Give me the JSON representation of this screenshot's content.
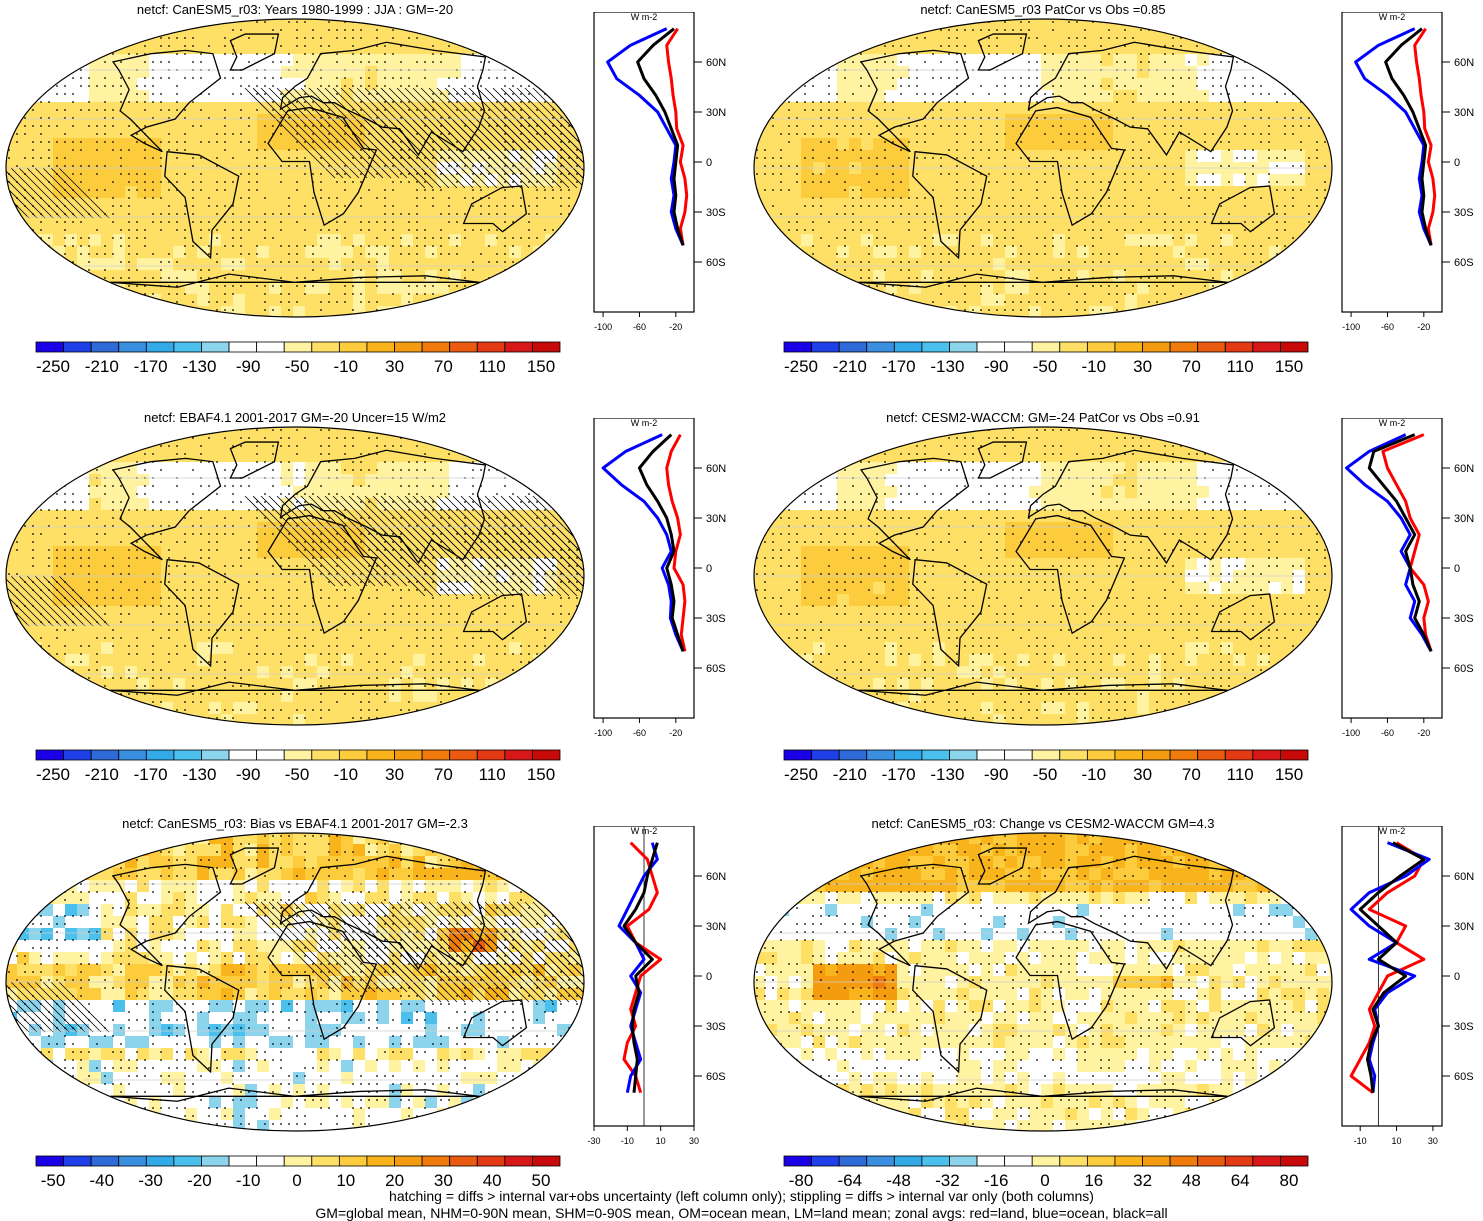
{
  "chart_data": [
    {
      "type": "heatmap",
      "variable": "netcf",
      "title": "netcf: CanESM5_r03: Years 1980-1999 : JJA : GM=-20",
      "colorbar_ticks": [
        "-250",
        "-210",
        "-170",
        "-130",
        "-90",
        "-50",
        "-10",
        "30",
        "70",
        "110",
        "150"
      ],
      "colorbar_range": [
        -270,
        170
      ],
      "hatching": true,
      "stippling": true,
      "profile": {
        "unit": "W m-2",
        "xticks": [
          "-100",
          "-60",
          "-20"
        ],
        "xlim": [
          -110,
          0
        ],
        "yticks": [
          "60N",
          "30N",
          "0",
          "30S",
          "60S"
        ],
        "lat_range": [
          -90,
          90
        ],
        "series": [
          {
            "name": "land",
            "color": "#ff0000",
            "lat": [
              80,
              70,
              60,
              50,
              40,
              30,
              20,
              10,
              0,
              -10,
              -20,
              -30,
              -40,
              -50
            ],
            "values": [
              -18,
              -30,
              -28,
              -25,
              -23,
              -20,
              -19,
              -12,
              -15,
              -10,
              -8,
              -10,
              -15,
              -12
            ]
          },
          {
            "name": "ocean",
            "color": "#0000ff",
            "lat": [
              80,
              70,
              60,
              50,
              40,
              30,
              20,
              10,
              0,
              -10,
              -20,
              -30,
              -40,
              -50
            ],
            "values": [
              -30,
              -70,
              -95,
              -85,
              -60,
              -40,
              -30,
              -20,
              -22,
              -25,
              -22,
              -25,
              -20,
              -12
            ]
          },
          {
            "name": "all",
            "color": "#000000",
            "lat": [
              80,
              70,
              60,
              50,
              40,
              30,
              20,
              10,
              0,
              -10,
              -20,
              -30,
              -40,
              -50
            ],
            "values": [
              -22,
              -45,
              -62,
              -55,
              -42,
              -32,
              -25,
              -18,
              -20,
              -22,
              -20,
              -22,
              -18,
              -12
            ]
          }
        ]
      }
    },
    {
      "type": "heatmap",
      "variable": "netcf",
      "title": "netcf: CanESM5_r03 PatCor vs Obs =0.85",
      "colorbar_ticks": [
        "-250",
        "-210",
        "-170",
        "-130",
        "-90",
        "-50",
        "-10",
        "30",
        "70",
        "110",
        "150"
      ],
      "colorbar_range": [
        -270,
        170
      ],
      "hatching": false,
      "stippling": true,
      "profile": {
        "unit": "W m-2",
        "xticks": [
          "-100",
          "-60",
          "-20"
        ],
        "xlim": [
          -110,
          0
        ],
        "yticks": [
          "60N",
          "30N",
          "0",
          "30S",
          "60S"
        ],
        "lat_range": [
          -90,
          90
        ],
        "series": [
          {
            "name": "land",
            "color": "#ff0000",
            "lat": [
              80,
              70,
              60,
              50,
              40,
              30,
              20,
              10,
              0,
              -10,
              -20,
              -30,
              -40,
              -50
            ],
            "values": [
              -18,
              -30,
              -28,
              -25,
              -23,
              -20,
              -19,
              -12,
              -15,
              -10,
              -8,
              -10,
              -15,
              -12
            ]
          },
          {
            "name": "ocean",
            "color": "#0000ff",
            "lat": [
              80,
              70,
              60,
              50,
              40,
              30,
              20,
              10,
              0,
              -10,
              -20,
              -30,
              -40,
              -50
            ],
            "values": [
              -30,
              -70,
              -95,
              -85,
              -60,
              -40,
              -30,
              -20,
              -22,
              -25,
              -22,
              -25,
              -20,
              -12
            ]
          },
          {
            "name": "all",
            "color": "#000000",
            "lat": [
              80,
              70,
              60,
              50,
              40,
              30,
              20,
              10,
              0,
              -10,
              -20,
              -30,
              -40,
              -50
            ],
            "values": [
              -22,
              -45,
              -62,
              -55,
              -42,
              -32,
              -25,
              -18,
              -20,
              -22,
              -20,
              -22,
              -18,
              -12
            ]
          }
        ]
      }
    },
    {
      "type": "heatmap",
      "variable": "netcf",
      "title": "netcf: EBAF4.1 2001-2017 GM=-20 Uncer=15 W/m2",
      "colorbar_ticks": [
        "-250",
        "-210",
        "-170",
        "-130",
        "-90",
        "-50",
        "-10",
        "30",
        "70",
        "110",
        "150"
      ],
      "colorbar_range": [
        -270,
        170
      ],
      "hatching": true,
      "stippling": true,
      "profile": {
        "unit": "W m-2",
        "xticks": [
          "-100",
          "-60",
          "-20"
        ],
        "xlim": [
          -110,
          0
        ],
        "yticks": [
          "60N",
          "30N",
          "0",
          "30S",
          "60S"
        ],
        "lat_range": [
          -90,
          90
        ],
        "series": [
          {
            "name": "land",
            "color": "#ff0000",
            "lat": [
              80,
              70,
              60,
              50,
              40,
              30,
              20,
              10,
              0,
              -10,
              -20,
              -30,
              -40,
              -50
            ],
            "values": [
              -15,
              -25,
              -30,
              -28,
              -24,
              -18,
              -15,
              -20,
              -22,
              -12,
              -10,
              -12,
              -14,
              -10
            ]
          },
          {
            "name": "ocean",
            "color": "#0000ff",
            "lat": [
              80,
              70,
              60,
              50,
              40,
              30,
              20,
              10,
              0,
              -10,
              -20,
              -30,
              -40,
              -50
            ],
            "values": [
              -35,
              -75,
              -100,
              -80,
              -55,
              -40,
              -30,
              -25,
              -35,
              -28,
              -25,
              -26,
              -20,
              -12
            ]
          },
          {
            "name": "all",
            "color": "#000000",
            "lat": [
              80,
              70,
              60,
              50,
              40,
              30,
              20,
              10,
              0,
              -10,
              -20,
              -30,
              -40,
              -50
            ],
            "values": [
              -25,
              -45,
              -60,
              -52,
              -40,
              -30,
              -25,
              -22,
              -30,
              -25,
              -22,
              -24,
              -18,
              -12
            ]
          }
        ]
      }
    },
    {
      "type": "heatmap",
      "variable": "netcf",
      "title": "netcf: CESM2-WACCM: GM=-24 PatCor vs Obs =0.91",
      "colorbar_ticks": [
        "-250",
        "-210",
        "-170",
        "-130",
        "-90",
        "-50",
        "-10",
        "30",
        "70",
        "110",
        "150"
      ],
      "colorbar_range": [
        -270,
        170
      ],
      "hatching": false,
      "stippling": true,
      "profile": {
        "unit": "W m-2",
        "xticks": [
          "-100",
          "-60",
          "-20"
        ],
        "xlim": [
          -110,
          0
        ],
        "yticks": [
          "60N",
          "30N",
          "0",
          "30S",
          "60S"
        ],
        "lat_range": [
          -90,
          90
        ],
        "series": [
          {
            "name": "land",
            "color": "#ff0000",
            "lat": [
              80,
              70,
              60,
              50,
              40,
              30,
              20,
              10,
              0,
              -10,
              -20,
              -30,
              -40,
              -50
            ],
            "values": [
              -20,
              -65,
              -60,
              -50,
              -40,
              -35,
              -25,
              -30,
              -35,
              -20,
              -15,
              -20,
              -18,
              -12
            ]
          },
          {
            "name": "ocean",
            "color": "#0000ff",
            "lat": [
              80,
              70,
              60,
              50,
              40,
              30,
              20,
              10,
              0,
              -10,
              -20,
              -30,
              -40,
              -50
            ],
            "values": [
              -40,
              -80,
              -105,
              -85,
              -60,
              -45,
              -35,
              -45,
              -35,
              -40,
              -30,
              -35,
              -22,
              -12
            ]
          },
          {
            "name": "all",
            "color": "#000000",
            "lat": [
              80,
              70,
              60,
              50,
              40,
              30,
              20,
              10,
              0,
              -10,
              -20,
              -30,
              -40,
              -50
            ],
            "values": [
              -30,
              -75,
              -80,
              -65,
              -50,
              -40,
              -30,
              -40,
              -35,
              -32,
              -25,
              -30,
              -20,
              -12
            ]
          }
        ]
      }
    },
    {
      "type": "heatmap",
      "variable": "netcf",
      "title": "netcf: CanESM5_r03: Bias vs EBAF4.1 2001-2017 GM=-2.3",
      "colorbar_ticks": [
        "-50",
        "-40",
        "-30",
        "-20",
        "-10",
        "0",
        "10",
        "20",
        "30",
        "40",
        "50"
      ],
      "colorbar_range": [
        -55,
        55
      ],
      "hatching": true,
      "stippling": true,
      "profile": {
        "unit": "W m-2",
        "xticks": [
          "-30",
          "-10",
          "10",
          "30"
        ],
        "xlim": [
          -30,
          30
        ],
        "yticks": [
          "60N",
          "30N",
          "0",
          "30S",
          "60S"
        ],
        "lat_range": [
          -90,
          90
        ],
        "series": [
          {
            "name": "land",
            "color": "#ff0000",
            "lat": [
              80,
              70,
              60,
              50,
              40,
              30,
              20,
              10,
              0,
              -10,
              -20,
              -30,
              -40,
              -50,
              -60,
              -70
            ],
            "values": [
              -8,
              2,
              5,
              8,
              3,
              -10,
              -5,
              10,
              -2,
              -5,
              -8,
              -5,
              -10,
              -12,
              -5,
              -2
            ]
          },
          {
            "name": "ocean",
            "color": "#0000ff",
            "lat": [
              80,
              70,
              60,
              50,
              40,
              30,
              20,
              10,
              0,
              -10,
              -20,
              -30,
              -40,
              -50,
              -60,
              -70
            ],
            "values": [
              5,
              8,
              0,
              -5,
              -10,
              -15,
              -5,
              0,
              -8,
              -2,
              -5,
              -8,
              -5,
              -2,
              -8,
              -10
            ]
          },
          {
            "name": "all",
            "color": "#000000",
            "lat": [
              80,
              70,
              60,
              50,
              40,
              30,
              20,
              10,
              0,
              -10,
              -20,
              -30,
              -40,
              -50,
              -60,
              -70
            ],
            "values": [
              8,
              5,
              2,
              0,
              -5,
              -12,
              -5,
              5,
              -5,
              -3,
              -6,
              -7,
              -6,
              -4,
              -5,
              -6
            ]
          }
        ]
      }
    },
    {
      "type": "heatmap",
      "variable": "netcf",
      "title": "netcf: CanESM5_r03: Change vs CESM2-WACCM GM=4.3",
      "colorbar_ticks": [
        "-80",
        "-64",
        "-48",
        "-32",
        "-16",
        "0",
        "16",
        "32",
        "48",
        "64",
        "80"
      ],
      "colorbar_range": [
        -88,
        88
      ],
      "hatching": false,
      "stippling": true,
      "profile": {
        "unit": "W m-2",
        "xticks": [
          "-10",
          "10",
          "30"
        ],
        "xlim": [
          -20,
          35
        ],
        "yticks": [
          "60N",
          "30N",
          "0",
          "30S",
          "60S"
        ],
        "lat_range": [
          -90,
          90
        ],
        "series": [
          {
            "name": "land",
            "color": "#ff0000",
            "lat": [
              80,
              70,
              60,
              50,
              40,
              30,
              20,
              10,
              0,
              -10,
              -20,
              -30,
              -40,
              -50,
              -60,
              -70
            ],
            "values": [
              10,
              25,
              20,
              5,
              -5,
              15,
              10,
              25,
              5,
              0,
              -5,
              -2,
              -5,
              -10,
              -15,
              -3
            ]
          },
          {
            "name": "ocean",
            "color": "#0000ff",
            "lat": [
              80,
              70,
              60,
              50,
              40,
              30,
              20,
              10,
              0,
              -10,
              -20,
              -30,
              -40,
              -50,
              -60,
              -70
            ],
            "values": [
              5,
              28,
              15,
              -5,
              -15,
              -5,
              10,
              -5,
              20,
              5,
              -2,
              0,
              -3,
              -5,
              -2,
              -3
            ]
          },
          {
            "name": "all",
            "color": "#000000",
            "lat": [
              80,
              70,
              60,
              50,
              40,
              30,
              20,
              10,
              0,
              -10,
              -20,
              -30,
              -40,
              -50,
              -60,
              -70
            ],
            "values": [
              8,
              25,
              12,
              0,
              -10,
              0,
              10,
              0,
              15,
              3,
              -3,
              0,
              -4,
              -6,
              -4,
              -3
            ]
          }
        ]
      }
    }
  ],
  "palette": [
    "#1a00e6",
    "#1f3fe8",
    "#2f6bd8",
    "#3a8fe0",
    "#33aae8",
    "#4cc0ec",
    "#8cd3ec",
    "#ffffff",
    "#ffffff",
    "#fff2a0",
    "#ffe066",
    "#fdcc3d",
    "#f9b41c",
    "#f59b0f",
    "#f07a0b",
    "#ea5a10",
    "#e43a14",
    "#d81818",
    "#c80a0a"
  ],
  "footnote": {
    "line1": "hatching = diffs > internal var+obs uncertainty (left column only); stippling = diffs > internal var only (both columns)",
    "line2": "GM=global mean, NHM=0-90N mean, SHM=0-90S mean, OM=ocean mean, LM=land mean; zonal avgs: red=land, blue=ocean, black=all"
  }
}
